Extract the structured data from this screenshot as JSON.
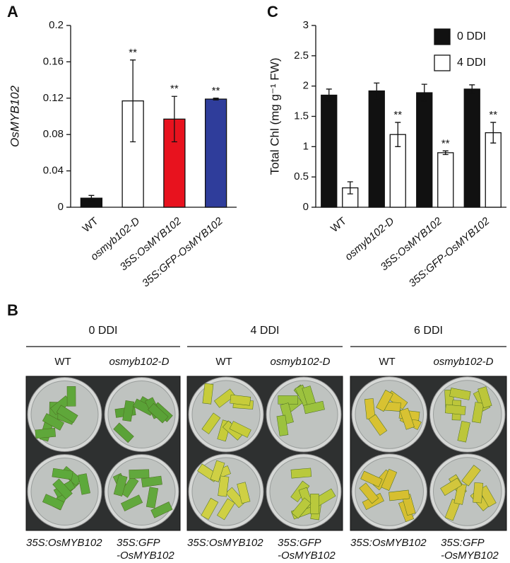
{
  "chart_data": [
    {
      "type": "bar",
      "panel": "A",
      "ylabel": "OsMYB102",
      "categories": [
        "WT",
        "osmyb102-D",
        "35S:OsMYB102",
        "35S:GFP-OsMYB102"
      ],
      "values": [
        0.01,
        0.117,
        0.097,
        0.119
      ],
      "errors": [
        0.003,
        0.045,
        0.025,
        0.001
      ],
      "colors": [
        "#111111",
        "#ffffff",
        "#e8121e",
        "#2f3d9b"
      ],
      "significance": [
        null,
        "**",
        "**",
        "**"
      ],
      "ylim": [
        0,
        0.2
      ],
      "yticks": [
        0,
        0.04,
        0.08,
        0.12,
        0.16,
        0.2
      ]
    },
    {
      "type": "grouped-bar",
      "panel": "C",
      "ylabel": "Total Chl (mg g⁻¹ FW)",
      "categories": [
        "WT",
        "osmyb102-D",
        "35S:OsMYB102",
        "35S:GFP-OsMYB102"
      ],
      "series": [
        {
          "name": "0 DDI",
          "color": "#111111",
          "values": [
            1.85,
            1.92,
            1.89,
            1.95
          ],
          "errors": [
            0.1,
            0.13,
            0.14,
            0.07
          ],
          "significance": [
            null,
            null,
            null,
            null
          ]
        },
        {
          "name": "4 DDI",
          "color": "#ffffff",
          "values": [
            0.32,
            1.2,
            0.9,
            1.23
          ],
          "errors": [
            0.1,
            0.2,
            0.03,
            0.17
          ],
          "significance": [
            null,
            "**",
            "**",
            "**"
          ]
        }
      ],
      "legend": "top-right",
      "ylim": [
        0,
        3
      ],
      "yticks": [
        0,
        0.5,
        1,
        1.5,
        2,
        2.5,
        3
      ]
    }
  ],
  "photo_panel": {
    "panel": "B",
    "columns": [
      {
        "title": "0 DDI",
        "top_labels": [
          "WT",
          "osmyb102-D"
        ],
        "bottom_labels": [
          [
            "35S:OsMYB102"
          ],
          [
            "35S:GFP",
            "-OsMYB102"
          ]
        ]
      },
      {
        "title": "4 DDI",
        "top_labels": [
          "WT",
          "osmyb102-D"
        ],
        "bottom_labels": [
          [
            "35S:OsMYB102"
          ],
          [
            "35S:GFP",
            "-OsMYB102"
          ]
        ]
      },
      {
        "title": "6 DDI",
        "top_labels": [
          "WT",
          "osmyb102-D"
        ],
        "bottom_labels": [
          [
            "35S:OsMYB102"
          ],
          [
            "35S:GFP",
            "-OsMYB102"
          ]
        ]
      }
    ]
  }
}
